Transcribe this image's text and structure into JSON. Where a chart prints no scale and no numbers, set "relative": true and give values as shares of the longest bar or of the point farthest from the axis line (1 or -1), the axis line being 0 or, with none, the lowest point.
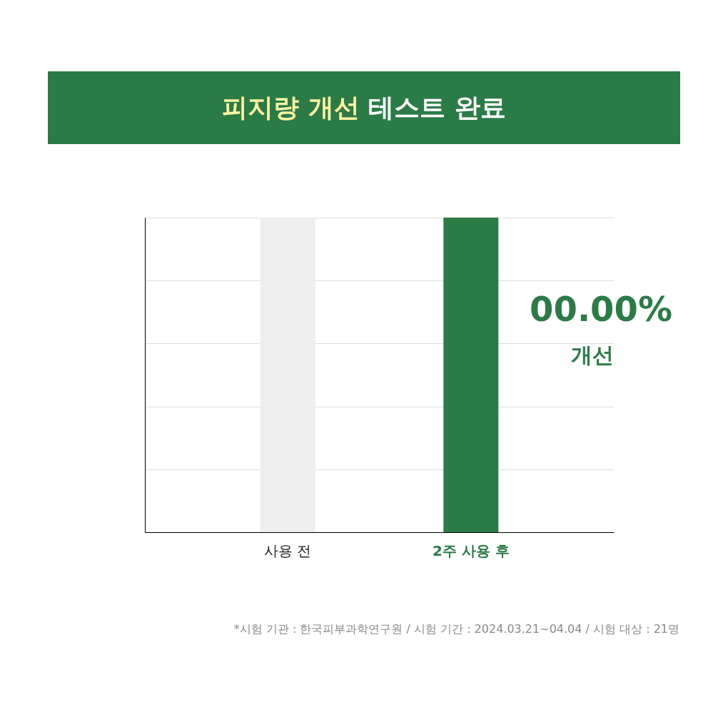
{
  "chart_data": {
    "type": "bar",
    "title": "피지량 개선 테스트 완료",
    "categories": [
      "사용 전",
      "2주 사용 후"
    ],
    "values": [
      1,
      1
    ],
    "colors": [
      "#eeeeee",
      "#2b7b47"
    ],
    "relative": true,
    "grid": "y",
    "annotations": [
      "00.00%",
      "개선",
      "*시험 기관 : 한국피부과학연구원 / 시험 기간 : 2024.03.21~04.04 / 시험 대상 : 21명"
    ]
  }
}
